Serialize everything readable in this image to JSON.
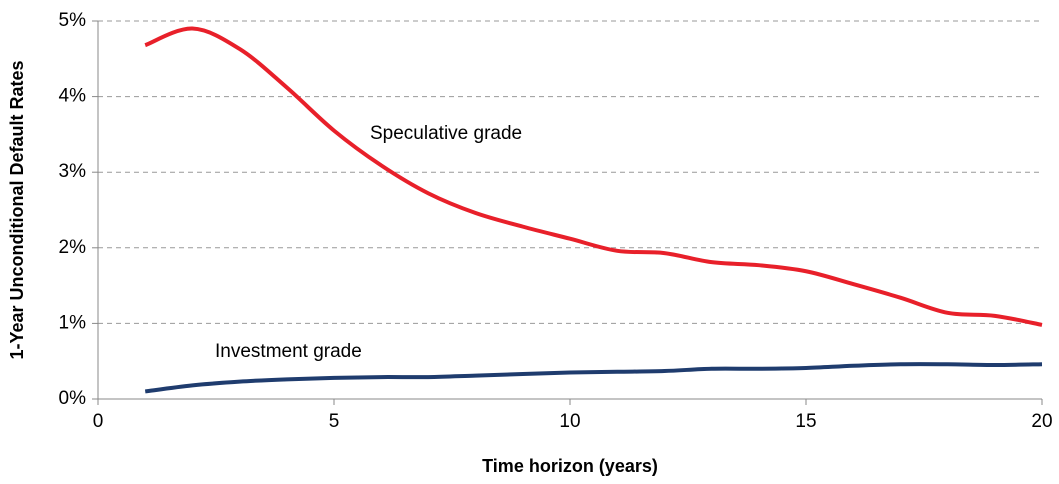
{
  "chart_data": {
    "type": "line",
    "x_label": "Time horizon (years)",
    "y_label": "1-Year Unconditional Default Rates",
    "x": [
      1,
      2,
      3,
      4,
      5,
      6,
      7,
      8,
      9,
      10,
      11,
      12,
      13,
      14,
      15,
      16,
      17,
      18,
      19,
      20
    ],
    "series": [
      {
        "name": "Speculative grade",
        "color": "#e8202a",
        "values": [
          4.68,
          4.9,
          4.63,
          4.12,
          3.55,
          3.09,
          2.72,
          2.46,
          2.28,
          2.12,
          1.96,
          1.93,
          1.81,
          1.77,
          1.69,
          1.52,
          1.34,
          1.14,
          1.1,
          0.98
        ]
      },
      {
        "name": "Investment grade",
        "color": "#1f3c6e",
        "values": [
          0.1,
          0.18,
          0.23,
          0.26,
          0.28,
          0.29,
          0.29,
          0.31,
          0.33,
          0.35,
          0.36,
          0.37,
          0.4,
          0.4,
          0.41,
          0.44,
          0.46,
          0.46,
          0.45,
          0.46
        ]
      }
    ],
    "xlim": [
      0,
      20
    ],
    "xticks": [
      0,
      5,
      10,
      15,
      20
    ],
    "ylim": [
      0,
      5
    ],
    "yticks": [
      {
        "value": 0,
        "label": "0%"
      },
      {
        "value": 1,
        "label": "1%"
      },
      {
        "value": 2,
        "label": "2%"
      },
      {
        "value": 3,
        "label": "3%"
      },
      {
        "value": 4,
        "label": "4%"
      },
      {
        "value": 5,
        "label": "5%"
      }
    ],
    "grid": true
  }
}
